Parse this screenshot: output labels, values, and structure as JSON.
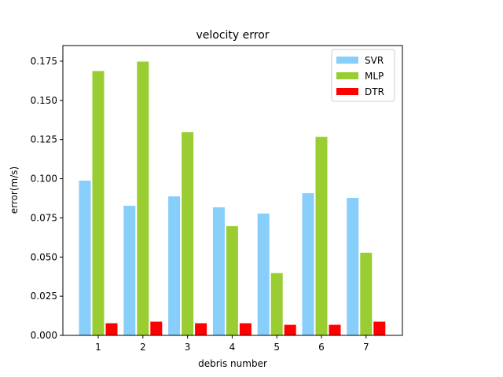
{
  "chart_data": {
    "type": "bar",
    "title": "velocity error",
    "xlabel": "debris number",
    "ylabel": "error(m/s)",
    "categories": [
      "1",
      "2",
      "3",
      "4",
      "5",
      "6",
      "7"
    ],
    "ylim": [
      0,
      0.185
    ],
    "yticks": [
      "0.000",
      "0.025",
      "0.050",
      "0.075",
      "0.100",
      "0.125",
      "0.150",
      "0.175"
    ],
    "series": [
      {
        "name": "SVR",
        "color": "#87cefa",
        "values": [
          0.099,
          0.083,
          0.089,
          0.082,
          0.078,
          0.091,
          0.088
        ]
      },
      {
        "name": "MLP",
        "color": "#9acd32",
        "values": [
          0.169,
          0.175,
          0.13,
          0.07,
          0.04,
          0.127,
          0.053
        ]
      },
      {
        "name": "DTR",
        "color": "#ff0000",
        "values": [
          0.008,
          0.009,
          0.008,
          0.008,
          0.007,
          0.007,
          0.009
        ]
      }
    ],
    "grid": false,
    "legend_position": "top-right"
  }
}
